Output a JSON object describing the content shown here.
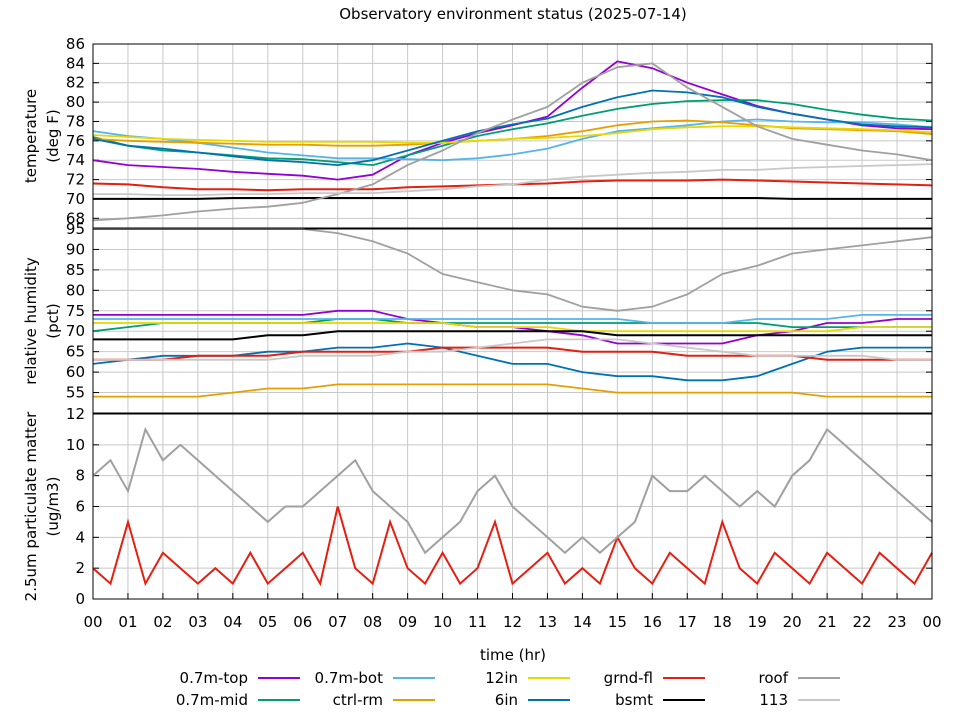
{
  "title": "Observatory environment status (2025-07-14)",
  "xlabel": "time (hr)",
  "x_ticks": [
    "00",
    "01",
    "02",
    "03",
    "04",
    "05",
    "06",
    "07",
    "08",
    "09",
    "10",
    "11",
    "12",
    "13",
    "14",
    "15",
    "16",
    "17",
    "18",
    "19",
    "20",
    "21",
    "22",
    "23",
    "00"
  ],
  "colors": {
    "0.7m-top": "#9400d3",
    "0.7m-mid": "#009e73",
    "0.7m-bot": "#56b4e9",
    "ctrl-rm": "#e69f00",
    "12in": "#e6d800",
    "6in": "#0072b2",
    "grnd-fl": "#e51e10",
    "bsmt": "#000000",
    "roof": "#a0a0a0",
    "113": "#c8c8c8"
  },
  "legend": [
    {
      "name": "0.7m-top"
    },
    {
      "name": "0.7m-mid"
    },
    {
      "name": "0.7m-bot"
    },
    {
      "name": "ctrl-rm"
    },
    {
      "name": "12in"
    },
    {
      "name": "6in"
    },
    {
      "name": "grnd-fl"
    },
    {
      "name": "bsmt"
    },
    {
      "name": "roof"
    },
    {
      "name": "113"
    }
  ],
  "chart_data": [
    {
      "type": "line",
      "ylabel_lines": [
        "temperature",
        "(deg F)"
      ],
      "ylim": [
        67,
        86
      ],
      "y_ticks": [
        68,
        70,
        72,
        74,
        76,
        78,
        80,
        82,
        84,
        86
      ],
      "grid": true,
      "x": [
        0,
        1,
        2,
        3,
        4,
        5,
        6,
        7,
        8,
        9,
        10,
        11,
        12,
        13,
        14,
        15,
        16,
        17,
        18,
        19,
        20,
        21,
        22,
        23,
        24
      ],
      "series": [
        {
          "name": "0.7m-top",
          "values": [
            74,
            73.5,
            73.3,
            73.1,
            72.8,
            72.6,
            72.4,
            72,
            72.5,
            74.5,
            75.8,
            76.8,
            77.6,
            78.5,
            81.5,
            84.2,
            83.5,
            82,
            80.8,
            79.6,
            78.8,
            78.2,
            77.6,
            77.3,
            77.2
          ]
        },
        {
          "name": "0.7m-mid",
          "values": [
            76.4,
            75.5,
            75,
            74.8,
            74.5,
            74.2,
            74.1,
            73.8,
            73.5,
            74.5,
            75.5,
            76.5,
            77.2,
            77.8,
            78.6,
            79.3,
            79.8,
            80.1,
            80.2,
            80.2,
            79.8,
            79.2,
            78.7,
            78.3,
            78.1
          ]
        },
        {
          "name": "0.7m-bot",
          "values": [
            77,
            76.5,
            76.2,
            75.8,
            75.3,
            74.8,
            74.5,
            74.2,
            74.2,
            74.1,
            74,
            74.2,
            74.6,
            75.2,
            76.2,
            77,
            77.3,
            77.6,
            78,
            78.2,
            78,
            77.9,
            77.9,
            77.7,
            77.4
          ]
        },
        {
          "name": "ctrl-rm",
          "values": [
            76.2,
            76,
            75.9,
            75.8,
            75.7,
            75.6,
            75.6,
            75.5,
            75.5,
            75.6,
            75.8,
            76,
            76.2,
            76.5,
            77,
            77.6,
            78,
            78.1,
            77.9,
            77.6,
            77.3,
            77.2,
            77.1,
            77,
            76.7
          ]
        },
        {
          "name": "12in",
          "values": [
            76.6,
            76.4,
            76.2,
            76.1,
            76,
            75.9,
            75.9,
            75.9,
            75.9,
            75.8,
            75.8,
            76,
            76.2,
            76.3,
            76.5,
            76.8,
            77.2,
            77.4,
            77.5,
            77.5,
            77.4,
            77.3,
            77.2,
            77.1,
            76.9
          ]
        },
        {
          "name": "6in",
          "values": [
            76.2,
            75.5,
            75.2,
            74.8,
            74.4,
            74,
            73.8,
            73.5,
            74,
            75,
            76,
            77,
            77.7,
            78.3,
            79.5,
            80.5,
            81.2,
            81,
            80.5,
            79.5,
            78.8,
            78.2,
            77.7,
            77.5,
            77.4
          ]
        },
        {
          "name": "grnd-fl",
          "values": [
            71.6,
            71.5,
            71.2,
            71,
            71,
            70.9,
            71,
            71,
            71,
            71.2,
            71.3,
            71.4,
            71.5,
            71.6,
            71.8,
            71.9,
            71.9,
            71.9,
            72,
            71.9,
            71.8,
            71.7,
            71.6,
            71.5,
            71.4
          ]
        },
        {
          "name": "bsmt",
          "values": [
            70,
            70,
            70,
            70,
            70.1,
            70.1,
            70.1,
            70.1,
            70.1,
            70.1,
            70.1,
            70.1,
            70.1,
            70.1,
            70.1,
            70.1,
            70.1,
            70.1,
            70.1,
            70.1,
            70,
            70,
            70,
            70,
            70
          ]
        },
        {
          "name": "roof",
          "values": [
            67.8,
            68,
            68.3,
            68.7,
            69,
            69.2,
            69.6,
            70.5,
            71.5,
            73.5,
            75,
            76.8,
            78.2,
            79.5,
            82,
            83.6,
            84,
            81.5,
            79.5,
            77.5,
            76.2,
            75.6,
            75,
            74.6,
            74
          ]
        },
        {
          "name": "113",
          "values": [
            70.5,
            70.5,
            70.4,
            70.4,
            70.5,
            70.5,
            70.6,
            70.6,
            70.6,
            70.8,
            71,
            71.3,
            71.5,
            72,
            72.3,
            72.5,
            72.7,
            72.8,
            73,
            73,
            73.2,
            73.3,
            73.4,
            73.5,
            73.6
          ]
        }
      ]
    },
    {
      "type": "line",
      "ylabel_lines": [
        "relative humidity",
        "(pct)"
      ],
      "ylim": [
        50,
        95
      ],
      "y_ticks": [
        55,
        60,
        65,
        70,
        75,
        80,
        85,
        90,
        95
      ],
      "grid": true,
      "x": [
        0,
        1,
        2,
        3,
        4,
        5,
        6,
        7,
        8,
        9,
        10,
        11,
        12,
        13,
        14,
        15,
        16,
        17,
        18,
        19,
        20,
        21,
        22,
        23,
        24
      ],
      "series": [
        {
          "name": "0.7m-top",
          "values": [
            74,
            74,
            74,
            74,
            74,
            74,
            74,
            75,
            75,
            73,
            72,
            71,
            71,
            70,
            69,
            67,
            67,
            67,
            67,
            69,
            70,
            72,
            72,
            73,
            73
          ]
        },
        {
          "name": "0.7m-mid",
          "values": [
            70,
            71,
            72,
            72,
            72,
            72,
            72,
            73,
            73,
            72,
            72,
            72,
            72,
            72,
            72,
            72,
            72,
            72,
            72,
            72,
            71,
            71,
            71,
            71,
            71
          ]
        },
        {
          "name": "0.7m-bot",
          "values": [
            73,
            73,
            73,
            73,
            73,
            73,
            73,
            73,
            73,
            73,
            73,
            73,
            73,
            73,
            73,
            73,
            72,
            72,
            72,
            73,
            73,
            73,
            74,
            74,
            74
          ]
        },
        {
          "name": "ctrl-rm",
          "values": [
            54,
            54,
            54,
            54,
            55,
            56,
            56,
            57,
            57,
            57,
            57,
            57,
            57,
            57,
            56,
            55,
            55,
            55,
            55,
            55,
            55,
            54,
            54,
            54,
            54
          ]
        },
        {
          "name": "12in",
          "values": [
            72,
            72,
            72,
            72,
            72,
            72,
            72,
            72,
            72,
            72,
            72,
            71,
            71,
            71,
            70,
            70,
            70,
            70,
            70,
            70,
            70,
            70,
            71,
            71,
            71
          ]
        },
        {
          "name": "6in",
          "values": [
            62,
            63,
            64,
            64,
            64,
            65,
            65,
            66,
            66,
            67,
            66,
            64,
            62,
            62,
            60,
            59,
            59,
            58,
            58,
            59,
            62,
            65,
            66,
            66,
            66
          ]
        },
        {
          "name": "grnd-fl",
          "values": [
            63,
            63,
            63,
            64,
            64,
            64,
            65,
            65,
            65,
            65,
            66,
            66,
            66,
            66,
            65,
            65,
            65,
            64,
            64,
            64,
            64,
            63,
            63,
            63,
            63
          ]
        },
        {
          "name": "bsmt",
          "values": [
            68,
            68,
            68,
            68,
            68,
            69,
            69,
            70,
            70,
            70,
            70,
            70,
            70,
            70,
            70,
            69,
            69,
            69,
            69,
            69,
            69,
            69,
            69,
            69,
            69
          ]
        },
        {
          "name": "roof",
          "values": [
            95,
            95,
            95,
            95,
            95,
            95,
            95,
            94,
            92,
            89,
            84,
            82,
            80,
            79,
            76,
            75,
            76,
            79,
            84,
            86,
            89,
            90,
            91,
            92,
            93
          ]
        },
        {
          "name": "113",
          "values": [
            63,
            63,
            63,
            63,
            63,
            63,
            64,
            64,
            64,
            65,
            65,
            66,
            67,
            68,
            68,
            68,
            67,
            66,
            65,
            64,
            64,
            64,
            64,
            63,
            63
          ]
        }
      ]
    },
    {
      "type": "line",
      "ylabel_lines": [
        "2.5um particulate matter",
        "(ug/m3)"
      ],
      "ylim": [
        0,
        12
      ],
      "y_ticks": [
        0,
        2,
        4,
        6,
        8,
        10,
        12
      ],
      "grid": true,
      "x": [
        0,
        0.5,
        1,
        1.5,
        2,
        2.5,
        3,
        3.5,
        4,
        4.5,
        5,
        5.5,
        6,
        6.5,
        7,
        7.5,
        8,
        8.5,
        9,
        9.5,
        10,
        10.5,
        11,
        11.5,
        12,
        12.5,
        13,
        13.5,
        14,
        14.5,
        15,
        15.5,
        16,
        16.5,
        17,
        17.5,
        18,
        18.5,
        19,
        19.5,
        20,
        20.5,
        21,
        21.5,
        22,
        22.5,
        23,
        23.5,
        24
      ],
      "series": [
        {
          "name": "grnd-fl",
          "values": [
            2,
            1,
            5,
            1,
            3,
            2,
            1,
            2,
            1,
            3,
            1,
            2,
            3,
            1,
            6,
            2,
            1,
            5,
            2,
            1,
            3,
            1,
            2,
            5,
            1,
            2,
            3,
            1,
            2,
            1,
            4,
            2,
            1,
            3,
            2,
            1,
            5,
            2,
            1,
            3,
            2,
            1,
            3,
            2,
            1,
            3,
            2,
            1,
            3
          ]
        },
        {
          "name": "roof",
          "values": [
            8,
            9,
            7,
            11,
            9,
            10,
            9,
            8,
            7,
            6,
            5,
            6,
            6,
            7,
            8,
            9,
            7,
            6,
            5,
            3,
            4,
            5,
            7,
            8,
            6,
            5,
            4,
            3,
            4,
            3,
            4,
            5,
            8,
            7,
            7,
            8,
            7,
            6,
            7,
            6,
            8,
            9,
            11,
            10,
            9,
            8,
            7,
            6,
            5
          ]
        }
      ]
    }
  ]
}
